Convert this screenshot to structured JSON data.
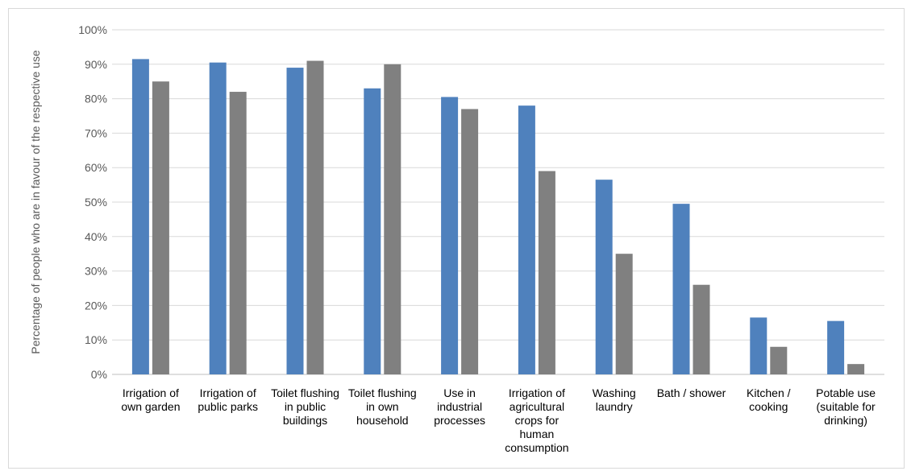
{
  "chart_data": {
    "type": "bar",
    "title": "",
    "ylabel": "Percentage of people who are in favour of the respective use",
    "ylim": [
      0,
      100
    ],
    "y_ticks": [
      "0%",
      "10%",
      "20%",
      "30%",
      "40%",
      "50%",
      "60%",
      "70%",
      "80%",
      "90%",
      "100%"
    ],
    "grid": true,
    "legend": "none",
    "categories": [
      "Irrigation of own garden",
      "Irrigation of public parks",
      "Toilet flushing in public buildings",
      "Toilet flushing in own household",
      "Use in industrial processes",
      "Irrigation of agricultural crops for human consumption",
      "Washing laundry",
      "Bath / shower",
      "Kitchen / cooking",
      "Potable use (suitable for drinking)"
    ],
    "series": [
      {
        "color": "#4f81bd",
        "values": [
          91.5,
          90.5,
          89,
          83,
          80.5,
          78,
          56.5,
          49.5,
          16.5,
          15.5
        ]
      },
      {
        "color": "#808080",
        "values": [
          85,
          82,
          91,
          90,
          77,
          59,
          35,
          26,
          8,
          3
        ]
      }
    ]
  }
}
